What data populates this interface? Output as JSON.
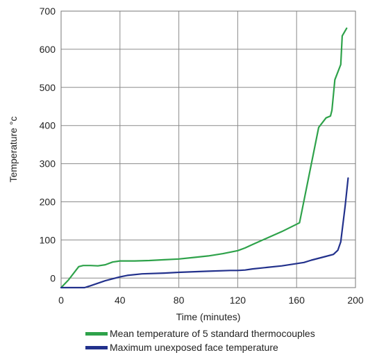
{
  "chart_data": {
    "type": "line",
    "title": "",
    "xlabel": "Time (minutes)",
    "ylabel": "Temperature °c",
    "xlim": [
      0,
      200
    ],
    "ylim": [
      -25,
      700
    ],
    "xticks": [
      0,
      40,
      80,
      120,
      160,
      200
    ],
    "yticks": [
      0,
      100,
      200,
      300,
      400,
      500,
      600,
      700
    ],
    "grid": true,
    "legend_position": "bottom",
    "series": [
      {
        "name": "Mean temperature of 5 standard thermocouples",
        "color": "#2ea24a",
        "points": [
          [
            0,
            -25
          ],
          [
            5,
            -5
          ],
          [
            12,
            30
          ],
          [
            15,
            33
          ],
          [
            20,
            33
          ],
          [
            25,
            32
          ],
          [
            30,
            35
          ],
          [
            35,
            42
          ],
          [
            40,
            45
          ],
          [
            50,
            45
          ],
          [
            60,
            46
          ],
          [
            70,
            48
          ],
          [
            80,
            50
          ],
          [
            90,
            54
          ],
          [
            100,
            58
          ],
          [
            110,
            64
          ],
          [
            120,
            72
          ],
          [
            125,
            79
          ],
          [
            130,
            88
          ],
          [
            140,
            105
          ],
          [
            150,
            122
          ],
          [
            162,
            145
          ],
          [
            175,
            395
          ],
          [
            180,
            420
          ],
          [
            183,
            425
          ],
          [
            184,
            440
          ],
          [
            186,
            520
          ],
          [
            190,
            560
          ],
          [
            191,
            635
          ],
          [
            194,
            655
          ]
        ]
      },
      {
        "name": "Maximum unexposed face temperature",
        "color": "#22318c",
        "points": [
          [
            0,
            -25
          ],
          [
            16,
            -25
          ],
          [
            20,
            -20
          ],
          [
            30,
            -7
          ],
          [
            40,
            3
          ],
          [
            45,
            7
          ],
          [
            55,
            11
          ],
          [
            70,
            13
          ],
          [
            80,
            15
          ],
          [
            100,
            18
          ],
          [
            115,
            20
          ],
          [
            120,
            20
          ],
          [
            125,
            21
          ],
          [
            130,
            24
          ],
          [
            140,
            28
          ],
          [
            150,
            32
          ],
          [
            160,
            38
          ],
          [
            165,
            41
          ],
          [
            170,
            47
          ],
          [
            180,
            57
          ],
          [
            185,
            62
          ],
          [
            188,
            73
          ],
          [
            190,
            95
          ],
          [
            193,
            190
          ],
          [
            195,
            262
          ]
        ]
      }
    ]
  }
}
